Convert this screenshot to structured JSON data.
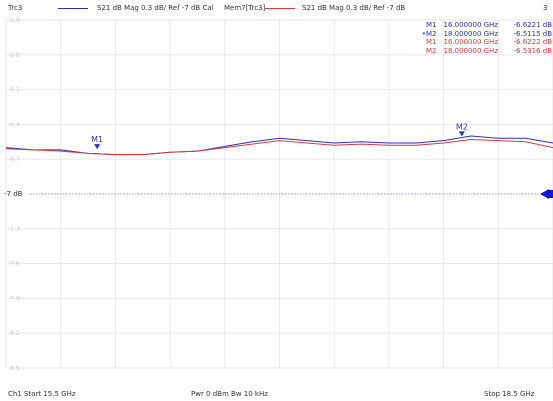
{
  "header": {
    "trace_name": "Trc3",
    "trace_desc": "S21  dB Mag  0.3 dB/ Ref -7 dB  Cal",
    "memory_name": "Mem7[Trc3]",
    "memory_desc": "S21  dB Mag  0.3 dB/ Ref -7 dB",
    "channel_number": "3"
  },
  "colors": {
    "trace": "#2e2eb8",
    "memory": "#d23c3c",
    "grid": "#e4e4e4",
    "ref_line": "#9aa0c8",
    "ref_arrow": "#1515d4"
  },
  "marker_table": [
    {
      "prefix": "",
      "name": "M1",
      "freq": "16.000000 GHz",
      "value": "-6.6221 dB",
      "series": "trace"
    },
    {
      "prefix": "•",
      "name": "M2",
      "freq": "18.000000 GHz",
      "value": "-6.5115 dB",
      "series": "trace"
    },
    {
      "prefix": "",
      "name": "M1",
      "freq": "16.000000 GHz",
      "value": "-6.6222 dB",
      "series": "memory"
    },
    {
      "prefix": "",
      "name": "M2",
      "freq": "18.000000 GHz",
      "value": "-6.5316 dB",
      "series": "memory"
    }
  ],
  "chart_data": {
    "type": "line",
    "x_unit": "GHz",
    "y_unit": "dB",
    "xlim": [
      15.5,
      18.5
    ],
    "ylim": [
      -8.5,
      -5.5
    ],
    "ref_level": -7,
    "ref_label": "-7 dB",
    "grid": true,
    "y_tick_labels": [
      "-5.5",
      "-5.8",
      "-6.1",
      "-6.4",
      "-6.7",
      "-7 dB",
      "-7.3",
      "-7.6",
      "-7.9",
      "-8.2",
      "-8.5"
    ],
    "x_divisions": 10,
    "series": [
      {
        "name": "Trc3",
        "color_key": "trace",
        "x": [
          15.5,
          15.65,
          15.8,
          15.95,
          16.1,
          16.25,
          16.4,
          16.55,
          16.7,
          16.85,
          17.0,
          17.15,
          17.3,
          17.45,
          17.6,
          17.75,
          17.9,
          18.05,
          18.2,
          18.35,
          18.5
        ],
        "y": [
          -6.6,
          -6.62,
          -6.62,
          -6.65,
          -6.66,
          -6.66,
          -6.64,
          -6.63,
          -6.59,
          -6.55,
          -6.52,
          -6.54,
          -6.56,
          -6.55,
          -6.56,
          -6.56,
          -6.54,
          -6.5,
          -6.52,
          -6.52,
          -6.56
        ]
      },
      {
        "name": "Mem7[Trc3]",
        "color_key": "memory",
        "x": [
          15.5,
          15.65,
          15.8,
          15.95,
          16.1,
          16.25,
          16.4,
          16.55,
          16.7,
          16.85,
          17.0,
          17.15,
          17.3,
          17.45,
          17.6,
          17.75,
          17.9,
          18.05,
          18.2,
          18.35,
          18.5
        ],
        "y": [
          -6.61,
          -6.62,
          -6.63,
          -6.65,
          -6.66,
          -6.66,
          -6.64,
          -6.63,
          -6.6,
          -6.57,
          -6.54,
          -6.56,
          -6.58,
          -6.57,
          -6.58,
          -6.58,
          -6.56,
          -6.53,
          -6.54,
          -6.55,
          -6.6
        ]
      }
    ],
    "markers": [
      {
        "label": "M1",
        "x": 16.0,
        "y": -6.6221
      },
      {
        "label": "M2",
        "x": 18.0,
        "y": -6.5115
      }
    ]
  },
  "footer": {
    "start_label": "Ch1  Start  15.5 GHz",
    "power_bw_label": "Pwr  0 dBm  Bw  10 kHz",
    "stop_label": "Stop  18.5 GHz"
  }
}
